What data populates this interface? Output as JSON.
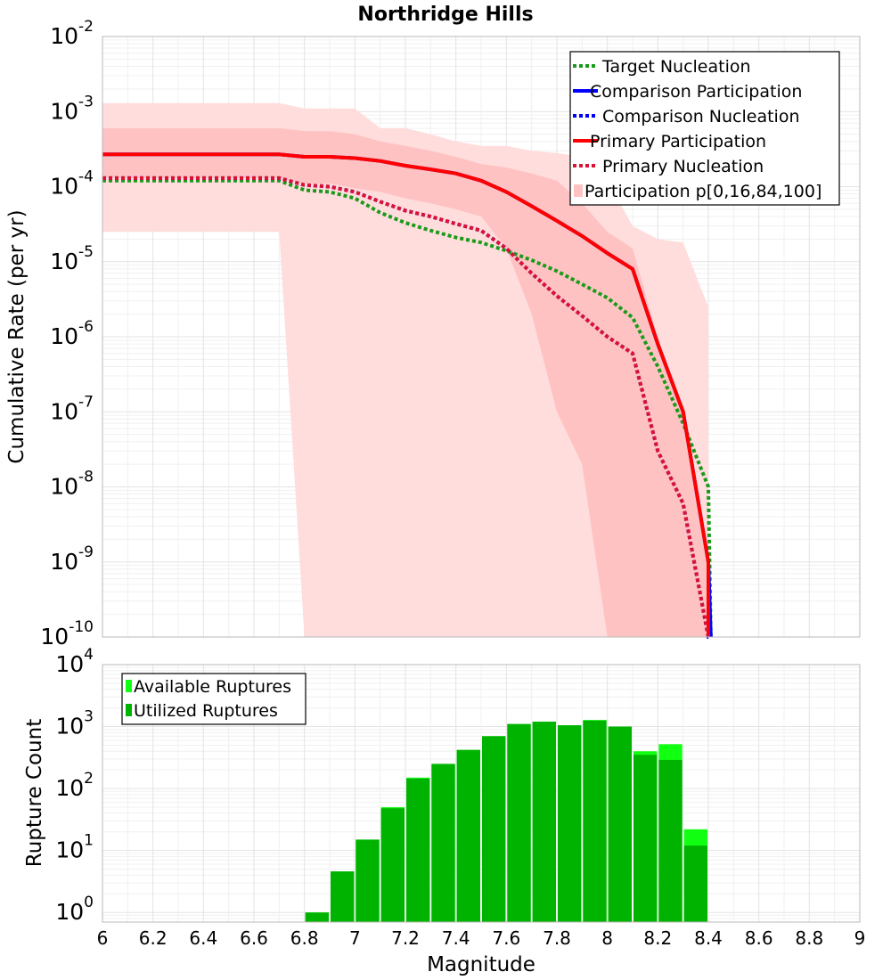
{
  "title": "Northridge Hills",
  "colors": {
    "target_nucleation": "#1a9a1a",
    "comparison": "#0000ff",
    "primary": "#ff0000",
    "primary_nucleation": "#dd1133",
    "band_outer": "#ffdddd",
    "band_inner": "#ffc2c2",
    "available": "#11ff11",
    "utilized": "#00b300"
  },
  "chart_data": [
    {
      "type": "line",
      "ylabel": "Cumulative Rate (per yr)",
      "xlim": [
        6,
        9
      ],
      "ylim": [
        1e-10,
        0.01
      ],
      "yscale": "log",
      "y_ticks": [
        {
          "base": "10",
          "exp": "-2"
        },
        {
          "base": "10",
          "exp": "-3"
        },
        {
          "base": "10",
          "exp": "-4"
        },
        {
          "base": "10",
          "exp": "-5"
        },
        {
          "base": "10",
          "exp": "-6"
        },
        {
          "base": "10",
          "exp": "-7"
        },
        {
          "base": "10",
          "exp": "-8"
        },
        {
          "base": "10",
          "exp": "-9"
        },
        {
          "base": "10",
          "exp": "-10"
        }
      ],
      "legend_position": "top-right",
      "legend": [
        "Target Nucleation",
        "Comparison Participation",
        "Comparison Nucleation",
        "Primary Participation",
        "Primary Nucleation",
        "Participation p[0,16,84,100]"
      ],
      "bands": {
        "name": "Participation p[0,16,84,100]",
        "x": [
          6.0,
          6.1,
          6.2,
          6.3,
          6.4,
          6.5,
          6.6,
          6.7,
          6.8,
          6.9,
          7.0,
          7.1,
          7.2,
          7.3,
          7.4,
          7.5,
          7.6,
          7.7,
          7.8,
          7.9,
          8.0,
          8.1,
          8.2,
          8.3,
          8.4
        ],
        "p0": [
          2.5e-05,
          2.5e-05,
          2.5e-05,
          2.5e-05,
          2.5e-05,
          2.5e-05,
          2.5e-05,
          2.5e-05,
          1e-10,
          1e-10,
          1e-10,
          1e-10,
          1e-10,
          1e-10,
          1e-10,
          1e-10,
          1e-10,
          1e-10,
          1e-10,
          1e-10,
          1e-10,
          1e-10,
          1e-10,
          1e-10,
          1e-10
        ],
        "p16": [
          0.00013,
          0.00013,
          0.00013,
          0.00013,
          0.00013,
          0.00013,
          0.00013,
          0.00013,
          0.00011,
          0.00011,
          9.5e-05,
          8.5e-05,
          7e-05,
          6e-05,
          5e-05,
          4e-05,
          1.5e-05,
          2e-06,
          1e-07,
          2e-08,
          1e-10,
          1e-10,
          1e-10,
          1e-10,
          1e-10
        ],
        "p84": [
          0.0006,
          0.0006,
          0.0006,
          0.0006,
          0.0006,
          0.0006,
          0.0006,
          0.0006,
          0.00055,
          0.00055,
          0.0005,
          0.0004,
          0.00035,
          0.0003,
          0.00025,
          0.0002,
          0.00018,
          0.00015,
          0.00012,
          6e-05,
          2.5e-05,
          1.5e-05,
          1e-06,
          1e-07,
          1e-09
        ],
        "p100": [
          0.0013,
          0.0013,
          0.0013,
          0.0013,
          0.0013,
          0.0013,
          0.0013,
          0.0013,
          0.0011,
          0.0011,
          0.0011,
          0.0006,
          0.0006,
          0.0005,
          0.0004,
          0.00035,
          0.00035,
          0.0003,
          0.00028,
          0.00025,
          0.00012,
          3e-05,
          2e-05,
          1.8e-05,
          2.5e-06
        ]
      },
      "series": [
        {
          "name": "Target Nucleation",
          "style": "dotted",
          "x": [
            6.0,
            6.7,
            6.8,
            6.9,
            7.0,
            7.1,
            7.2,
            7.3,
            7.4,
            7.5,
            7.6,
            7.7,
            7.8,
            7.9,
            8.0,
            8.1,
            8.2,
            8.3,
            8.4,
            8.41
          ],
          "y": [
            0.00012,
            0.00012,
            9e-05,
            8.5e-05,
            7e-05,
            4.5e-05,
            3.3e-05,
            2.6e-05,
            2.1e-05,
            1.8e-05,
            1.4e-05,
            1.05e-05,
            7.5e-06,
            5e-06,
            3.3e-06,
            1.8e-06,
            4e-07,
            7e-08,
            1e-08,
            1e-10
          ]
        },
        {
          "name": "Comparison Participation",
          "style": "solid",
          "x": [
            6.0,
            6.7,
            6.8,
            6.9,
            7.0,
            7.1,
            7.2,
            7.3,
            7.4,
            7.5,
            7.6,
            7.7,
            7.8,
            7.9,
            8.0,
            8.1,
            8.2,
            8.3,
            8.4,
            8.41
          ],
          "y": [
            0.00027,
            0.00027,
            0.00025,
            0.00025,
            0.00024,
            0.00022,
            0.00019,
            0.00017,
            0.00015,
            0.00012,
            8.5e-05,
            5.5e-05,
            3.5e-05,
            2.2e-05,
            1.3e-05,
            8e-06,
            8e-07,
            1e-07,
            1e-09,
            1e-10
          ]
        },
        {
          "name": "Comparison Nucleation",
          "style": "dotted",
          "x": [
            6.0,
            6.7,
            6.8,
            6.9,
            7.0,
            7.1,
            7.2,
            7.3,
            7.4,
            7.5,
            7.6,
            7.7,
            7.8,
            7.9,
            8.0,
            8.1,
            8.2,
            8.3,
            8.4,
            8.41
          ],
          "y": [
            0.00013,
            0.00013,
            0.000105,
            0.0001,
            8.5e-05,
            6.3e-05,
            4.8e-05,
            4e-05,
            3.2e-05,
            2.6e-05,
            1.5e-05,
            7e-06,
            3.5e-06,
            1.9e-06,
            1e-06,
            6e-07,
            3e-08,
            6e-09,
            1e-10,
            1e-10
          ]
        },
        {
          "name": "Primary Participation",
          "style": "solid",
          "x": [
            6.0,
            6.7,
            6.8,
            6.9,
            7.0,
            7.1,
            7.2,
            7.3,
            7.4,
            7.5,
            7.6,
            7.7,
            7.8,
            7.9,
            8.0,
            8.1,
            8.2,
            8.3,
            8.4,
            8.4
          ],
          "y": [
            0.00027,
            0.00027,
            0.00025,
            0.00025,
            0.00024,
            0.00022,
            0.00019,
            0.00017,
            0.00015,
            0.00012,
            8.5e-05,
            5.5e-05,
            3.5e-05,
            2.2e-05,
            1.3e-05,
            8e-06,
            8e-07,
            1e-07,
            1e-09,
            1e-10
          ]
        },
        {
          "name": "Primary Nucleation",
          "style": "dotted",
          "x": [
            6.0,
            6.7,
            6.8,
            6.9,
            7.0,
            7.1,
            7.2,
            7.3,
            7.4,
            7.5,
            7.6,
            7.7,
            7.8,
            7.9,
            8.0,
            8.1,
            8.2,
            8.3,
            8.4,
            8.4
          ],
          "y": [
            0.00013,
            0.00013,
            0.000105,
            0.0001,
            8.5e-05,
            6.3e-05,
            4.8e-05,
            4e-05,
            3.2e-05,
            2.6e-05,
            1.5e-05,
            7e-06,
            3.5e-06,
            1.9e-06,
            1e-06,
            6e-07,
            3e-08,
            6e-09,
            1e-10,
            1e-10
          ]
        }
      ]
    },
    {
      "type": "bar",
      "ylabel": "Rupture Count",
      "xlabel": "Magnitude",
      "xlim": [
        6,
        9
      ],
      "ylim": [
        0.7,
        10000
      ],
      "yscale": "log",
      "x_ticks": [
        "6",
        "6.2",
        "6.4",
        "6.6",
        "6.8",
        "7",
        "7.2",
        "7.4",
        "7.6",
        "7.8",
        "8",
        "8.2",
        "8.4",
        "8.6",
        "8.8",
        "9"
      ],
      "y_ticks": [
        {
          "base": "10",
          "exp": "4"
        },
        {
          "base": "10",
          "exp": "3"
        },
        {
          "base": "10",
          "exp": "2"
        },
        {
          "base": "10",
          "exp": "1"
        },
        {
          "base": "10",
          "exp": "0"
        }
      ],
      "legend_position": "top-left",
      "legend": [
        "Available Ruptures",
        "Utilized Ruptures"
      ],
      "bin_width": 0.1,
      "categories": [
        6.85,
        6.95,
        7.05,
        7.15,
        7.25,
        7.35,
        7.45,
        7.55,
        7.65,
        7.75,
        7.85,
        7.95,
        8.05,
        8.15,
        8.25,
        8.35
      ],
      "series": [
        {
          "name": "Available Ruptures",
          "values": [
            1,
            4.6,
            15,
            50,
            150,
            250,
            420,
            700,
            1100,
            1200,
            1050,
            1280,
            1000,
            400,
            520,
            22
          ]
        },
        {
          "name": "Utilized Ruptures",
          "values": [
            1,
            4.6,
            15,
            48,
            145,
            250,
            420,
            700,
            1100,
            1200,
            1050,
            1250,
            1000,
            350,
            290,
            12
          ]
        }
      ]
    }
  ]
}
